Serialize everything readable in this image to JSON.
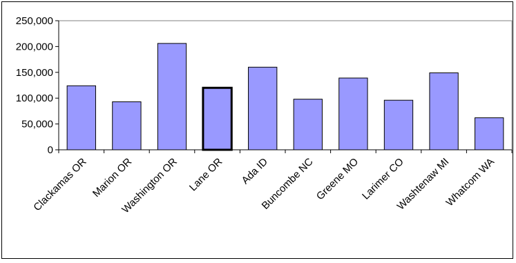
{
  "chart_data": {
    "type": "bar",
    "title": "",
    "xlabel": "",
    "ylabel": "",
    "ylim": [
      0,
      250000
    ],
    "yticks": [
      0,
      50000,
      100000,
      150000,
      200000,
      250000
    ],
    "ytick_labels": [
      "0",
      "50,000",
      "100,000",
      "150,000",
      "200,000",
      "250,000"
    ],
    "categories": [
      "Clackamas OR",
      "Marion OR",
      "Washington OR",
      "Lane OR",
      "Ada ID",
      "Buncombe NC",
      "Greene MO",
      "Larimer CO",
      "Washtenaw MI",
      "Whatcom WA"
    ],
    "values": [
      124000,
      93000,
      206000,
      120000,
      160000,
      98000,
      139000,
      96000,
      149000,
      62000
    ],
    "highlighted_category": "Lane OR",
    "bar_color": "#9999ff",
    "grid": false,
    "legend": "none"
  }
}
